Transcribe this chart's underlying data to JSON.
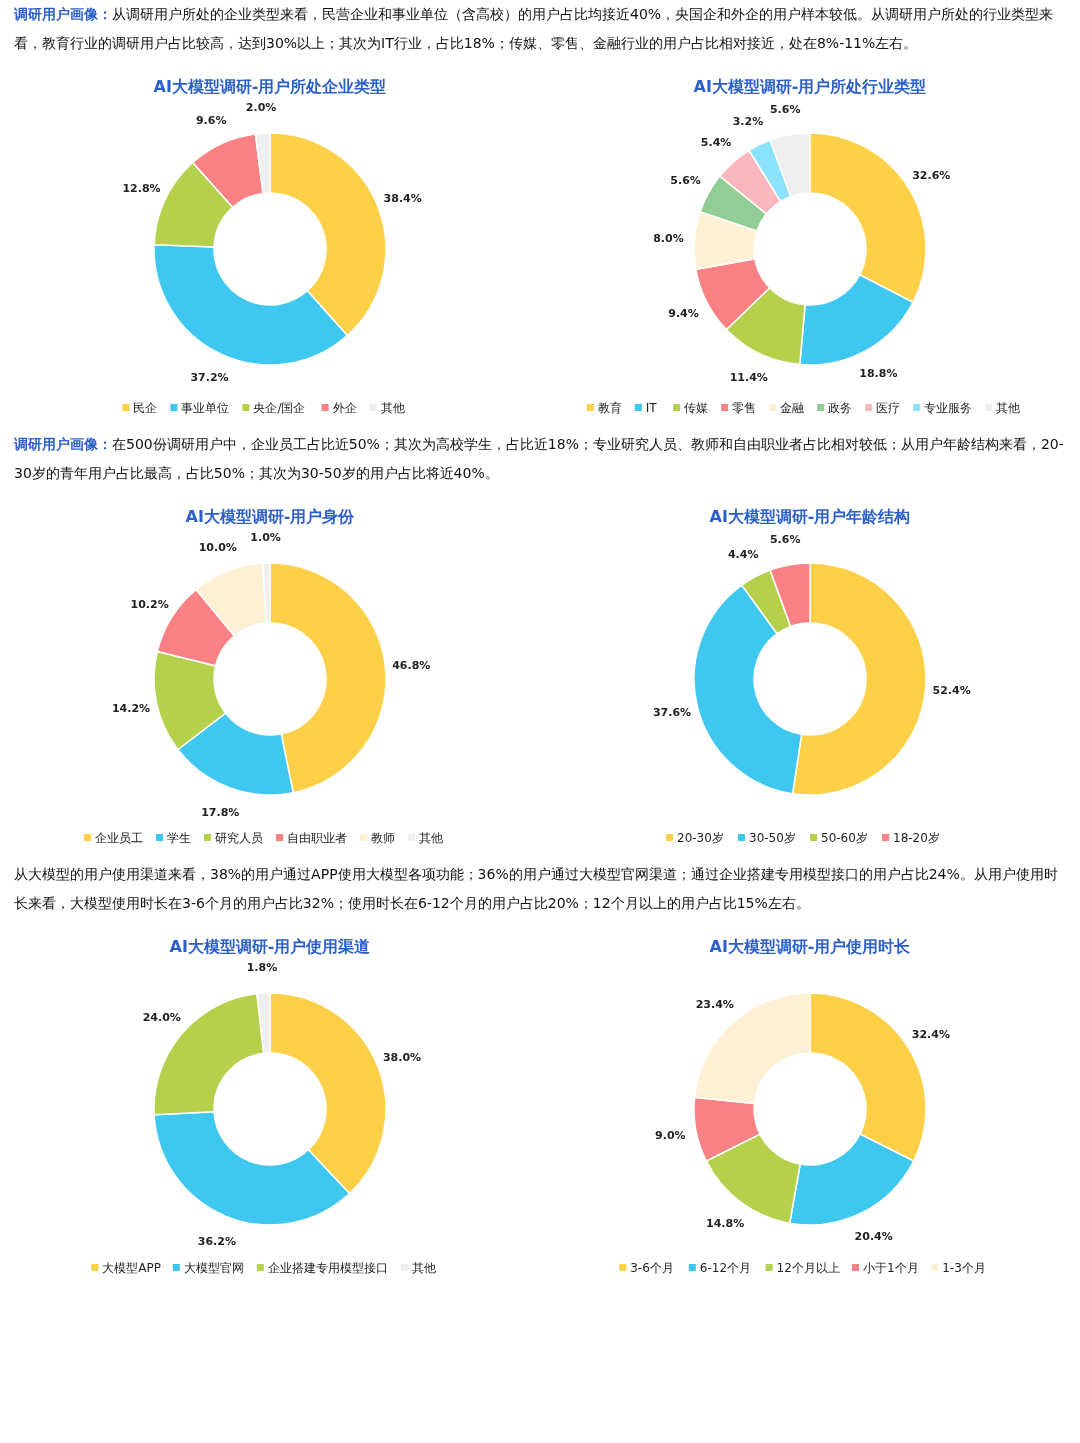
{
  "chart_data": [
    {
      "type": "donut",
      "title": "AI大模型调研-用户所处企业类型",
      "annotations": [
        "调研用户画像：",
        "从调研用户所处的企业类型来看，民营企业和事业单位（含高校）的用户占比均接近40%，央国企和外企的用户样本较低。从调研用户所处的行业类型来看，教育行业的调研用户占比较高，达到30%以上；其次为IT行业，占比18%；传媒、零售、金融行业的用户占比相对接近，处在8%-11%左右。"
      ],
      "categories": [
        "民企",
        "事业单位",
        "央企/国企",
        "外企",
        "其他"
      ],
      "values": [
        38.4,
        37.2,
        12.8,
        9.6,
        2.0
      ],
      "value_labels": [
        "38.4%",
        "37.2%",
        "12.8%",
        "9.6%",
        "2.0%"
      ],
      "colors": [
        "#fdd047",
        "#3fc8ef",
        "#b5d04a",
        "#f98183",
        "#efefef"
      ],
      "legend": "bottom"
    },
    {
      "type": "donut",
      "title": "AI大模型调研-用户所处行业类型",
      "categories": [
        "教育",
        "IT",
        "传媒",
        "零售",
        "金融",
        "政务",
        "医疗",
        "专业服务",
        "其他"
      ],
      "values": [
        32.6,
        18.8,
        11.4,
        9.4,
        8.0,
        5.6,
        5.4,
        3.2,
        5.6
      ],
      "value_labels": [
        "32.6%",
        "18.8%",
        "11.4%",
        "9.4%",
        "8.0%",
        "5.6%",
        "5.4%",
        "3.2%",
        "5.6%"
      ],
      "colors": [
        "#fdd047",
        "#3fc8ef",
        "#b5d04a",
        "#f98183",
        "#fdf0d4",
        "#91cd95",
        "#f9b8be",
        "#8ae3fa",
        "#efefef"
      ],
      "legend": "bottom"
    },
    {
      "type": "donut",
      "title": "AI大模型调研-用户身份",
      "annotations": [
        "调研用户画像：",
        "在500份调研用户中，企业员工占比近50%；其次为高校学生，占比近18%；专业研究人员、教师和自由职业者占比相对较低；从用户年龄结构来看，20-30岁的青年用户占比最高，占比50%；其次为30-50岁的用户占比将近40%。"
      ],
      "categories": [
        "企业员工",
        "学生",
        "研究人员",
        "自由职业者",
        "教师",
        "其他"
      ],
      "values": [
        46.8,
        17.8,
        14.2,
        10.2,
        10.0,
        1.0
      ],
      "value_labels": [
        "46.8%",
        "17.8%",
        "14.2%",
        "10.2%",
        "10.0%",
        "1.0%"
      ],
      "colors": [
        "#fdd047",
        "#3fc8ef",
        "#b5d04a",
        "#f98183",
        "#fdf0d4",
        "#efefef"
      ],
      "legend": "bottom"
    },
    {
      "type": "donut",
      "title": "AI大模型调研-用户年龄结构",
      "categories": [
        "20-30岁",
        "30-50岁",
        "50-60岁",
        "18-20岁"
      ],
      "values": [
        52.4,
        37.6,
        4.4,
        5.6
      ],
      "value_labels": [
        "52.4%",
        "37.6%",
        "4.4%",
        "5.6%"
      ],
      "colors": [
        "#fdd047",
        "#3fc8ef",
        "#b5d04a",
        "#f98183"
      ],
      "legend": "bottom"
    },
    {
      "type": "donut",
      "title": "AI大模型调研-用户使用渠道",
      "annotations": [
        "从大模型的用户使用渠道来看，38%的用户通过APP使用大模型各项功能；36%的用户通过大模型官网渠道；通过企业搭建专用模型接口的用户占比24%。从用户使用时长来看，大模型使用时长在3-6个月的用户占比32%；使用时长在6-12个月的用户占比20%；12个月以上的用户占比15%左右。"
      ],
      "categories": [
        "大模型APP",
        "大模型官网",
        "企业搭建专用模型接口",
        "其他"
      ],
      "values": [
        38.0,
        36.2,
        24.0,
        1.8
      ],
      "value_labels": [
        "38.0%",
        "36.2%",
        "24.0%",
        "1.8%"
      ],
      "colors": [
        "#fdd047",
        "#3fc8ef",
        "#b5d04a",
        "#efefef"
      ],
      "legend": "bottom"
    },
    {
      "type": "donut",
      "title": "AI大模型调研-用户使用时长",
      "categories": [
        "3-6个月",
        "6-12个月",
        "12个月以上",
        "小于1个月",
        "1-3个月"
      ],
      "values": [
        32.4,
        20.4,
        14.8,
        9.0,
        23.4
      ],
      "value_labels": [
        "32.4%",
        "20.4%",
        "14.8%",
        "9.0%",
        "23.4%"
      ],
      "colors": [
        "#fdd047",
        "#3fc8ef",
        "#b5d04a",
        "#f98183",
        "#fdf0d4"
      ],
      "legend": "bottom"
    }
  ]
}
